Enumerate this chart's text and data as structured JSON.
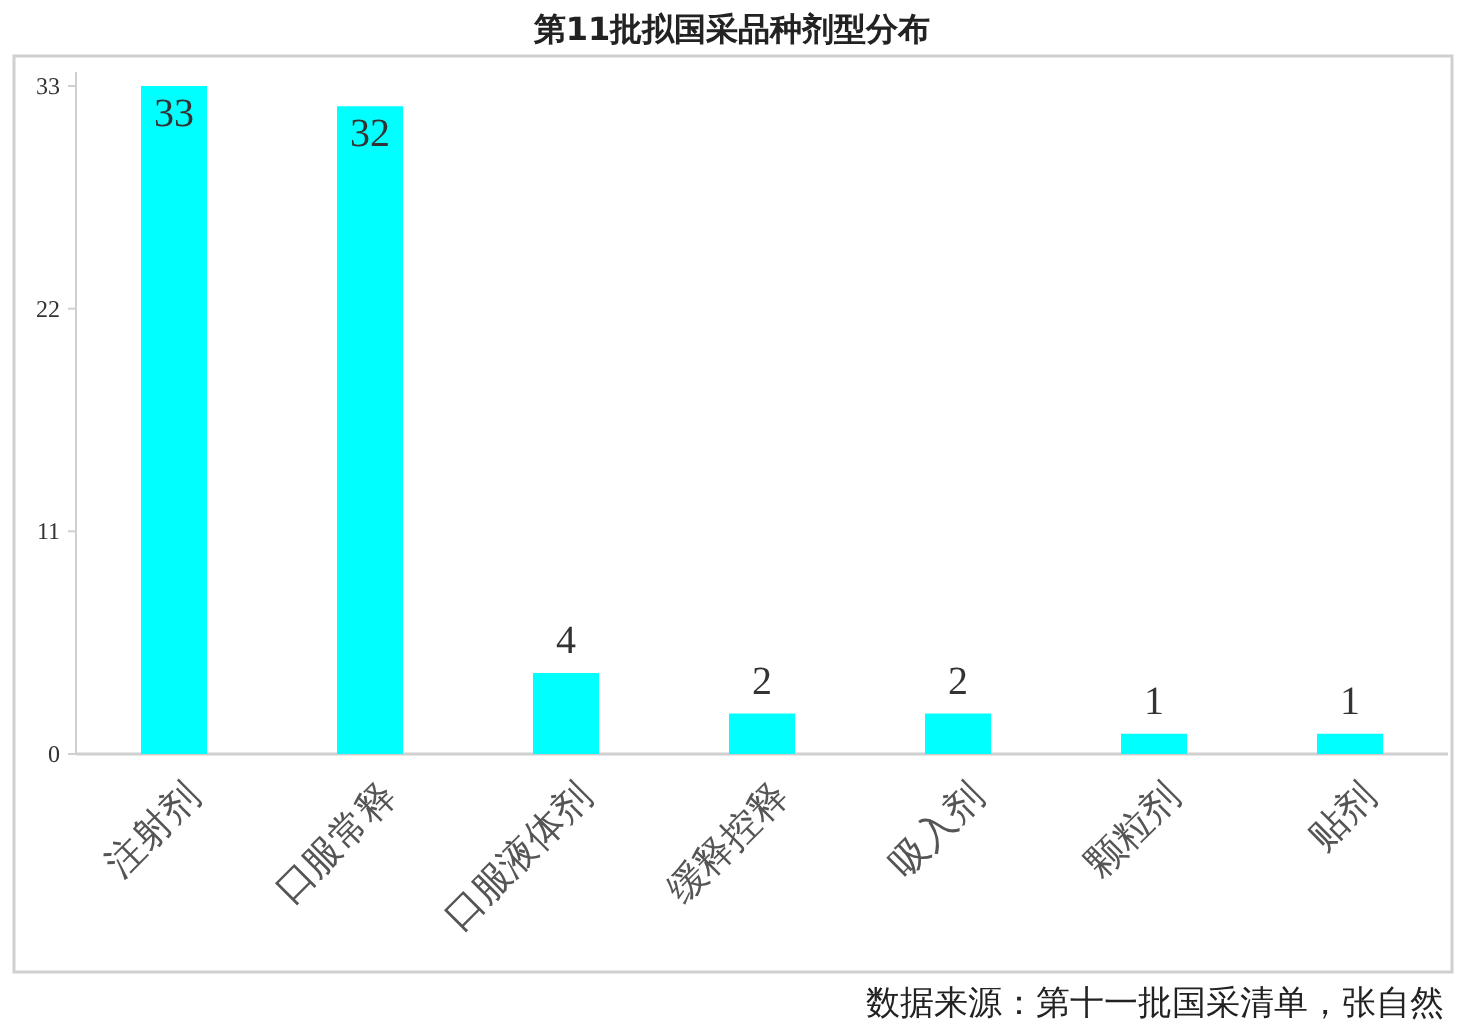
{
  "chart_data": {
    "type": "bar",
    "title": "第11批拟国采品种剂型分布",
    "categories": [
      "注射剂",
      "口服常释",
      "口服液体剂",
      "缓释控释",
      "吸入剂",
      "颗粒剂",
      "贴剂"
    ],
    "values": [
      33,
      32,
      4,
      2,
      2,
      1,
      1
    ],
    "color": "#00ffff",
    "ylim": [
      0,
      33
    ],
    "yticks": [
      0,
      11,
      22,
      33
    ],
    "data_labels": true,
    "annotations": [
      "数据来源：第十一批国采清单，张自然"
    ]
  }
}
